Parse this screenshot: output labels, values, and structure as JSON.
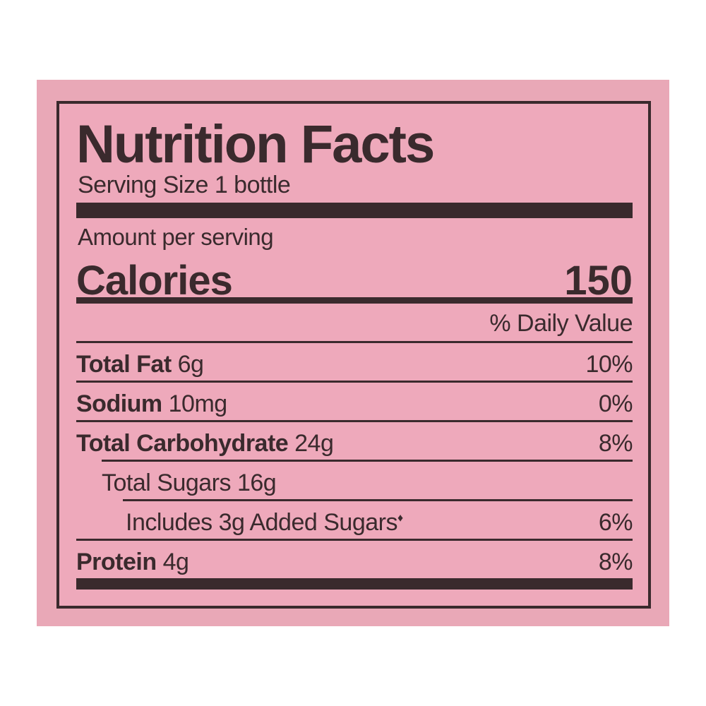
{
  "title": "Nutrition Facts",
  "serving_size": "Serving Size 1 bottle",
  "amount_per_serving": "Amount per serving",
  "calories": {
    "label": "Calories",
    "value": "150"
  },
  "daily_value_header": "% Daily Value",
  "rows": [
    {
      "name": "Total Fat",
      "amount": "6g",
      "dv": "10%"
    },
    {
      "name": "Sodium",
      "amount": "10mg",
      "dv": "0%"
    },
    {
      "name": "Total Carbohydrate",
      "amount": "24g",
      "dv": "8%"
    },
    {
      "name": "Total Sugars 16g",
      "amount": "",
      "dv": ""
    },
    {
      "name": "Includes 3g Added Sugars",
      "amount": "♦",
      "dv": "6%"
    },
    {
      "name": "Protein",
      "amount": "4g",
      "dv": "8%"
    }
  ],
  "colors": {
    "background": "#e9a8b7",
    "ink": "#3a2a2d"
  }
}
